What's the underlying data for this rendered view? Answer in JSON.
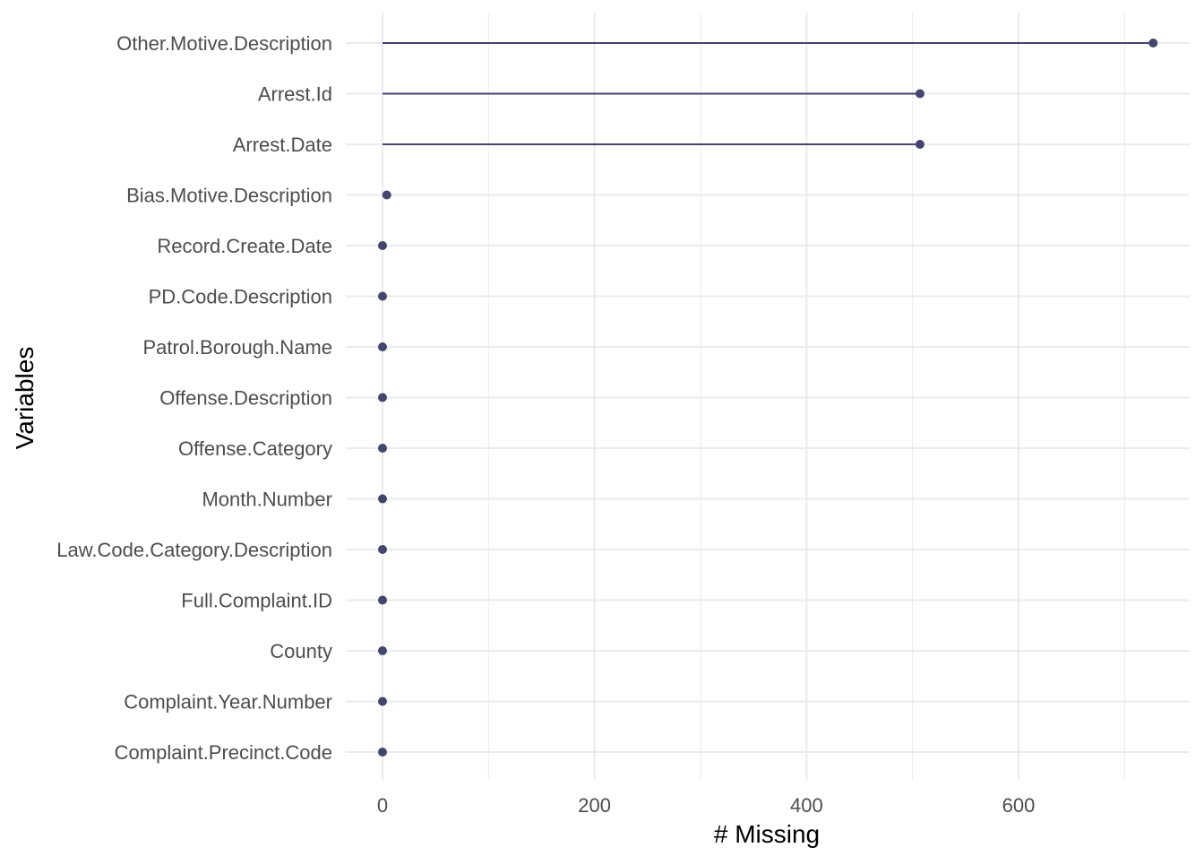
{
  "chart_data": {
    "type": "lollipop",
    "title": "",
    "xlabel": "# Missing",
    "ylabel": "Variables",
    "xlim": [
      -36,
      760
    ],
    "x_ticks": [
      0,
      200,
      400,
      600
    ],
    "x_minor_ticks": [
      100,
      300,
      500,
      700
    ],
    "grid": true,
    "color": "#44446e",
    "categories": [
      "Other.Motive.Description",
      "Arrest.Id",
      "Arrest.Date",
      "Bias.Motive.Description",
      "Record.Create.Date",
      "PD.Code.Description",
      "Patrol.Borough.Name",
      "Offense.Description",
      "Offense.Category",
      "Month.Number",
      "Law.Code.Category.Description",
      "Full.Complaint.ID",
      "County",
      "Complaint.Year.Number",
      "Complaint.Precinct.Code"
    ],
    "values": [
      727,
      507,
      507,
      4,
      0,
      0,
      0,
      0,
      0,
      0,
      0,
      0,
      0,
      0,
      0
    ]
  }
}
